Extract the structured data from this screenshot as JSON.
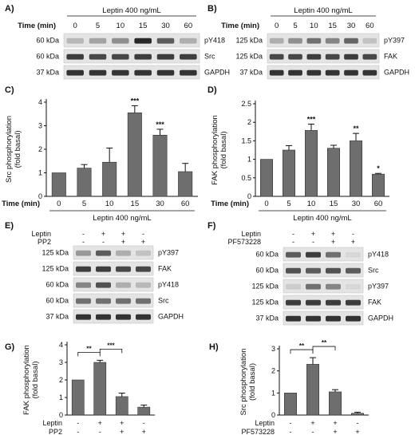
{
  "panels": {
    "A": {
      "letter": "A)",
      "header": "Leptin  400 ng/mL",
      "time_label": "Time (min)",
      "times": [
        "0",
        "5",
        "10",
        "15",
        "30",
        "60"
      ],
      "rows": [
        {
          "kda": "60 kDa",
          "protein": "pY418"
        },
        {
          "kda": "60 kDa",
          "protein": "Src"
        },
        {
          "kda": "37 kDa",
          "protein": "GAPDH"
        }
      ],
      "band_intensity": [
        [
          0.25,
          0.35,
          0.45,
          0.95,
          0.7,
          0.3
        ],
        [
          0.85,
          0.8,
          0.8,
          0.85,
          0.85,
          0.85
        ],
        [
          0.9,
          0.9,
          0.9,
          0.9,
          0.9,
          0.9
        ]
      ]
    },
    "B": {
      "letter": "B)",
      "header": "Leptin  400 ng/mL",
      "time_label": "Time (min)",
      "times": [
        "0",
        "5",
        "10",
        "15",
        "30",
        "60"
      ],
      "rows": [
        {
          "kda": "125 kDa",
          "protein": "pY397"
        },
        {
          "kda": "125 kDa",
          "protein": "FAK"
        },
        {
          "kda": "37 kDa",
          "protein": "GAPDH"
        }
      ],
      "band_intensity": [
        [
          0.3,
          0.45,
          0.6,
          0.5,
          0.65,
          0.2
        ],
        [
          0.8,
          0.8,
          0.85,
          0.8,
          0.85,
          0.8
        ],
        [
          0.9,
          0.9,
          0.9,
          0.9,
          0.9,
          0.9
        ]
      ]
    },
    "C": {
      "letter": "C)",
      "time_label": "Time (min)",
      "footer": "Leptin  400 ng/mL"
    },
    "D": {
      "letter": "D)",
      "time_label": "Time (min)",
      "footer": "Leptin  400 ng/mL"
    },
    "E": {
      "letter": "E)",
      "treatments": [
        {
          "label": "Leptin",
          "signs": [
            "-",
            "+",
            "+",
            "-"
          ]
        },
        {
          "label": "PP2",
          "signs": [
            "-",
            "-",
            "+",
            "+"
          ]
        }
      ],
      "rows": [
        {
          "kda": "125 kDa",
          "protein": "pY397"
        },
        {
          "kda": "125 kDa",
          "protein": "FAK"
        },
        {
          "kda": "60 kDa",
          "protein": "pY418"
        },
        {
          "kda": "60 kDa",
          "protein": "Src"
        },
        {
          "kda": "37 kDa",
          "protein": "GAPDH"
        }
      ],
      "band_intensity": [
        [
          0.4,
          0.7,
          0.3,
          0.2
        ],
        [
          0.85,
          0.85,
          0.8,
          0.8
        ],
        [
          0.5,
          0.75,
          0.3,
          0.25
        ],
        [
          0.6,
          0.6,
          0.6,
          0.6
        ],
        [
          0.9,
          0.9,
          0.9,
          0.9
        ]
      ]
    },
    "F": {
      "letter": "F)",
      "treatments": [
        {
          "label": "Leptin",
          "signs": [
            "-",
            "+",
            "+",
            "-"
          ]
        },
        {
          "label": "PF573228",
          "signs": [
            "-",
            "-",
            "+",
            "+"
          ]
        }
      ],
      "rows": [
        {
          "kda": "60 kDa",
          "protein": "pY418"
        },
        {
          "kda": "60 kDa",
          "protein": "Src"
        },
        {
          "kda": "125 kDa",
          "protein": "pY397"
        },
        {
          "kda": "125 kDa",
          "protein": "FAK"
        },
        {
          "kda": "37 kDa",
          "protein": "GAPDH"
        }
      ],
      "band_intensity": [
        [
          0.7,
          0.85,
          0.6,
          0.1
        ],
        [
          0.75,
          0.7,
          0.75,
          0.7
        ],
        [
          0.15,
          0.6,
          0.5,
          0.1
        ],
        [
          0.85,
          0.85,
          0.85,
          0.85
        ],
        [
          0.9,
          0.9,
          0.9,
          0.9
        ]
      ]
    },
    "G": {
      "letter": "G)",
      "treatments": [
        {
          "label": "Leptin",
          "signs": [
            "-",
            "+",
            "+",
            "-"
          ]
        },
        {
          "label": "PP2",
          "signs": [
            "-",
            "-",
            "+",
            "+"
          ]
        }
      ]
    },
    "H": {
      "letter": "H)",
      "treatments": [
        {
          "label": "Leptin",
          "signs": [
            "-",
            "+",
            "+",
            "-"
          ]
        },
        {
          "label": "PF573228",
          "signs": [
            "-",
            "-",
            "+",
            "+"
          ]
        }
      ]
    }
  },
  "chart_data": [
    {
      "id": "C",
      "type": "bar",
      "categories": [
        "0",
        "5",
        "10",
        "15",
        "30",
        "60"
      ],
      "values": [
        1.0,
        1.2,
        1.45,
        3.55,
        2.6,
        1.05
      ],
      "errors": [
        0,
        0.15,
        0.6,
        0.3,
        0.25,
        0.35
      ],
      "significance": [
        "",
        "",
        "",
        "***",
        "***",
        ""
      ],
      "ylabel": "Src phosphorylation\n(fold  basal)",
      "ylim": [
        0,
        4
      ],
      "yticks": [
        0,
        1,
        2,
        3,
        4
      ],
      "xlabel": "Time (min)"
    },
    {
      "id": "D",
      "type": "bar",
      "categories": [
        "0",
        "5",
        "10",
        "15",
        "30",
        "60"
      ],
      "values": [
        1.0,
        1.25,
        1.78,
        1.3,
        1.5,
        0.6
      ],
      "errors": [
        0,
        0.12,
        0.17,
        0.08,
        0.2,
        0.02
      ],
      "significance": [
        "",
        "",
        "***",
        "",
        "**",
        "*"
      ],
      "ylabel": "FAK phosphorylation\n(fold  basal)",
      "ylim": [
        0,
        2.5
      ],
      "yticks": [
        0,
        0.5,
        1,
        1.5,
        2,
        2.5
      ],
      "xlabel": "Time (min)"
    },
    {
      "id": "G",
      "type": "bar",
      "categories": [
        "1",
        "2",
        "3",
        "4"
      ],
      "values": [
        2.0,
        3.0,
        1.05,
        0.45
      ],
      "errors": [
        0,
        0.12,
        0.2,
        0.12
      ],
      "brackets": [
        {
          "from": 0,
          "to": 1,
          "label": "**"
        },
        {
          "from": 1,
          "to": 2,
          "label": "***"
        }
      ],
      "ylabel": "FAK phosphorylation\n(fold  basal)",
      "ylim": [
        0,
        4
      ],
      "yticks": [
        0,
        1,
        2,
        3,
        4
      ]
    },
    {
      "id": "H",
      "type": "bar",
      "categories": [
        "1",
        "2",
        "3",
        "4"
      ],
      "values": [
        1.0,
        2.3,
        1.05,
        0.08
      ],
      "errors": [
        0,
        0.3,
        0.1,
        0.05
      ],
      "brackets": [
        {
          "from": 0,
          "to": 1,
          "label": "**"
        },
        {
          "from": 1,
          "to": 2,
          "label": "**"
        }
      ],
      "ylabel": "Src phosphorylation\n(fold  basal)",
      "ylim": [
        0,
        3
      ],
      "yticks": [
        0,
        1,
        2,
        3
      ]
    }
  ]
}
